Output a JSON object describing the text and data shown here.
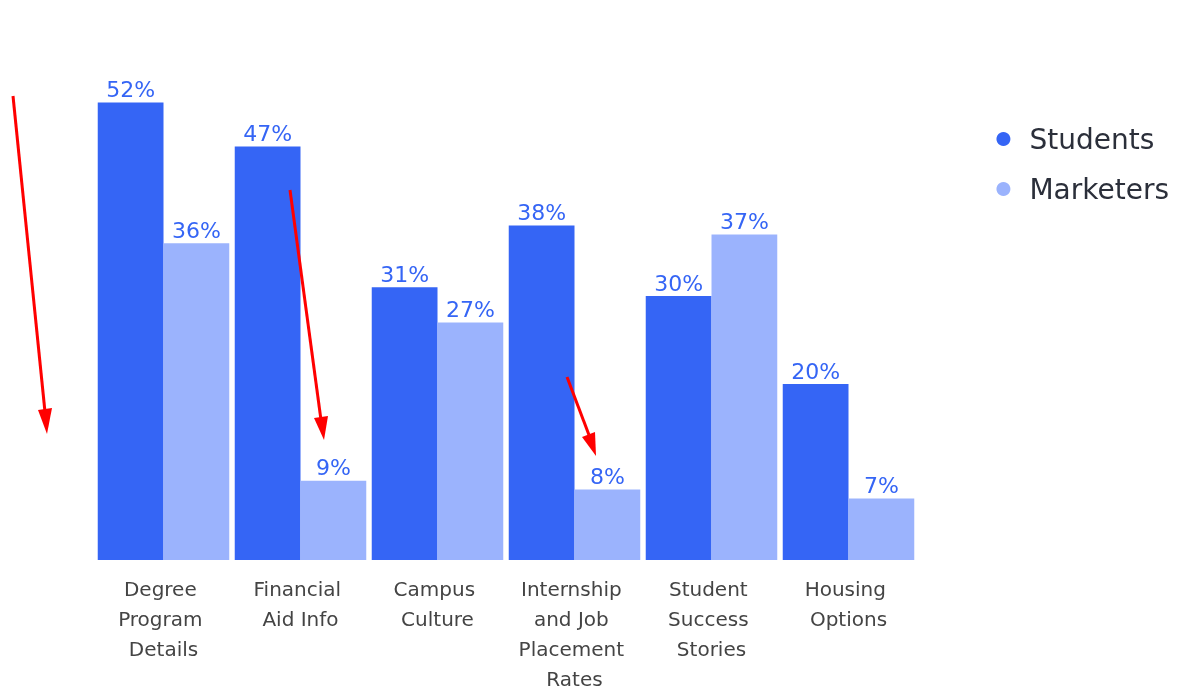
{
  "chart_data": {
    "type": "bar",
    "categories": [
      "Degree Program Details",
      "Financial Aid Info",
      "Campus Culture",
      "Internship and Job Placement Rates",
      "Student Success Stories",
      "Housing Options"
    ],
    "series": [
      {
        "name": "Students",
        "color": "#3565f5",
        "values": [
          52,
          47,
          31,
          38,
          30,
          20
        ],
        "value_labels": [
          "52%",
          "47%",
          "31%",
          "38%",
          "30%",
          "20%"
        ]
      },
      {
        "name": "Marketers",
        "color": "#9bb3fd",
        "values": [
          36,
          9,
          27,
          8,
          37,
          7
        ],
        "value_labels": [
          "36%",
          "9%",
          "27%",
          "8%",
          "37%",
          "7%"
        ]
      }
    ],
    "legend": "top right"
  }
}
